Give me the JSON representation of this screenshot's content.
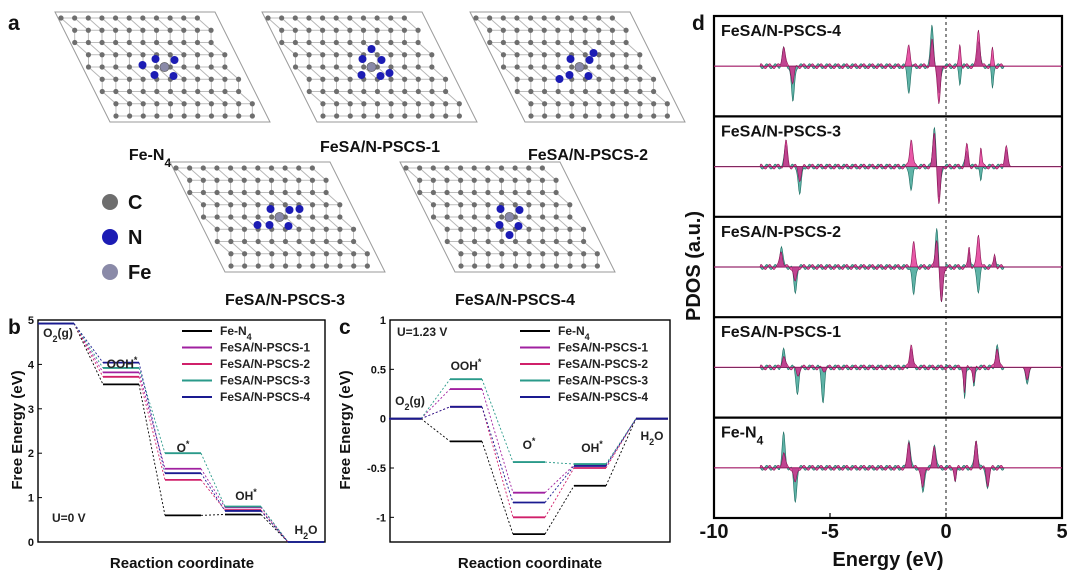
{
  "panel_a": {
    "label": "a",
    "structures": [
      "Fe-N4",
      "FeSA/N-PSCS-1",
      "FeSA/N-PSCS-2",
      "FeSA/N-PSCS-3",
      "FeSA/N-PSCS-4"
    ],
    "legend": [
      {
        "element": "C",
        "color": "#6e6e6e"
      },
      {
        "element": "N",
        "color": "#1c1cb4"
      },
      {
        "element": "Fe",
        "color": "#8a8aa8"
      }
    ]
  },
  "panel_b": {
    "label": "b",
    "condition": "U=0 V",
    "start_label": "O2(g)",
    "end_label": "H2O",
    "intermediates": [
      "OOH*",
      "O*",
      "OH*"
    ],
    "chart_data": {
      "type": "line",
      "xlabel": "Reaction coordinate",
      "ylabel": "Free Energy (eV)",
      "ylim": [
        0,
        5
      ],
      "yticks": [
        0,
        1,
        2,
        3,
        4,
        5
      ],
      "steps": [
        "O2(g)",
        "OOH*",
        "O*",
        "OH*",
        "H2O"
      ],
      "series": [
        {
          "name": "Fe-N4",
          "color": "#000000",
          "values": [
            4.92,
            3.55,
            0.6,
            0.62,
            0
          ]
        },
        {
          "name": "FeSA/N-PSCS-1",
          "color": "#a020a0",
          "values": [
            4.92,
            3.82,
            1.65,
            0.78,
            0
          ]
        },
        {
          "name": "FeSA/N-PSCS-2",
          "color": "#d0206a",
          "values": [
            4.92,
            3.72,
            1.4,
            0.72,
            0
          ]
        },
        {
          "name": "FeSA/N-PSCS-3",
          "color": "#2a9a8a",
          "values": [
            4.92,
            3.92,
            2.0,
            0.8,
            0
          ]
        },
        {
          "name": "FeSA/N-PSCS-4",
          "color": "#1a1a90",
          "values": [
            4.92,
            4.04,
            1.55,
            0.7,
            0
          ]
        }
      ]
    }
  },
  "panel_c": {
    "label": "c",
    "condition": "U=1.23 V",
    "start_label": "O2(g)",
    "end_label": "H2O",
    "intermediates": [
      "OOH*",
      "O*",
      "OH*"
    ],
    "chart_data": {
      "type": "line",
      "xlabel": "Reaction coordinate",
      "ylabel": "Free Energy (eV)",
      "ylim": [
        -1.25,
        1.0
      ],
      "yticks": [
        1.0,
        0.5,
        0.0,
        -0.5,
        -1.0
      ],
      "steps": [
        "O2(g)",
        "OOH*",
        "O*",
        "OH*",
        "H2O"
      ],
      "series": [
        {
          "name": "Fe-N4",
          "color": "#000000",
          "values": [
            0,
            -0.23,
            -1.17,
            -0.68,
            0
          ]
        },
        {
          "name": "FeSA/N-PSCS-1",
          "color": "#a020a0",
          "values": [
            0,
            0.3,
            -0.75,
            -0.47,
            0
          ]
        },
        {
          "name": "FeSA/N-PSCS-2",
          "color": "#d0206a",
          "values": [
            0,
            0.12,
            -1.0,
            -0.5,
            0
          ]
        },
        {
          "name": "FeSA/N-PSCS-3",
          "color": "#2a9a8a",
          "values": [
            0,
            0.4,
            -0.44,
            -0.46,
            0
          ]
        },
        {
          "name": "FeSA/N-PSCS-4",
          "color": "#1a1a90",
          "values": [
            0,
            0.12,
            -0.85,
            -0.48,
            0
          ]
        }
      ]
    }
  },
  "panel_d": {
    "label": "d",
    "chart_data": {
      "type": "area",
      "xlabel": "Energy (eV)",
      "ylabel": "PDOS (a.u.)",
      "xlim": [
        -10,
        5
      ],
      "xticks": [
        -10,
        -5,
        0,
        5
      ],
      "fermi_level": 0,
      "series_colors": [
        "#2a9a8a",
        "#e0208a"
      ],
      "subplots": [
        {
          "name": "FeSA/N-PSCS-4",
          "peaks": [
            [
              -7,
              0.4,
              0.5
            ],
            [
              -6.6,
              -0.9,
              -0.4
            ],
            [
              -1.6,
              -0.6,
              0.5
            ],
            [
              -0.6,
              1.0,
              0.6
            ],
            [
              -0.3,
              -0.7,
              -0.9
            ],
            [
              0.6,
              -0.4,
              0.5
            ],
            [
              1.4,
              0.6,
              0.9
            ],
            [
              2.0,
              -0.5,
              0.4
            ]
          ]
        },
        {
          "name": "FeSA/N-PSCS-3",
          "peaks": [
            [
              -6.9,
              0.5,
              0.6
            ],
            [
              -6.3,
              -0.7,
              -0.3
            ],
            [
              -1.5,
              -0.6,
              0.7
            ],
            [
              -0.5,
              1.0,
              0.8
            ],
            [
              -0.3,
              -0.8,
              -0.9
            ],
            [
              0.9,
              0.4,
              0.5
            ],
            [
              1.5,
              -0.4,
              0.5
            ],
            [
              2.6,
              0.4,
              0.5
            ]
          ]
        },
        {
          "name": "FeSA/N-PSCS-2",
          "peaks": [
            [
              -7.1,
              0.5,
              0.4
            ],
            [
              -6.5,
              -0.6,
              -0.4
            ],
            [
              -1.4,
              -0.7,
              0.6
            ],
            [
              -0.4,
              0.9,
              0.7
            ],
            [
              -0.2,
              -0.8,
              -0.9
            ],
            [
              1.0,
              0.4,
              0.5
            ],
            [
              1.4,
              -0.6,
              0.8
            ],
            [
              2.1,
              0.3,
              0.3
            ]
          ]
        },
        {
          "name": "FeSA/N-PSCS-1",
          "peaks": [
            [
              -7.0,
              0.4,
              0.3
            ],
            [
              -6.4,
              -0.6,
              -0.2
            ],
            [
              -5.3,
              -0.8,
              -0.1
            ],
            [
              -1.5,
              0.4,
              0.6
            ],
            [
              0.8,
              -0.8,
              -0.6
            ],
            [
              1.2,
              -0.5,
              -0.4
            ],
            [
              2.2,
              0.5,
              0.5
            ],
            [
              3.5,
              -0.4,
              -0.3
            ]
          ]
        },
        {
          "name": "Fe-N4",
          "peaks": [
            [
              -7.0,
              0.8,
              0.4
            ],
            [
              -6.5,
              -0.8,
              -0.4
            ],
            [
              -1.6,
              0.7,
              0.6
            ],
            [
              -1.0,
              -0.6,
              -0.5
            ],
            [
              -0.5,
              0.6,
              0.5
            ],
            [
              0.4,
              -0.4,
              -0.3
            ],
            [
              1.3,
              0.7,
              0.6
            ],
            [
              1.8,
              -0.5,
              -0.4
            ]
          ]
        }
      ]
    }
  }
}
